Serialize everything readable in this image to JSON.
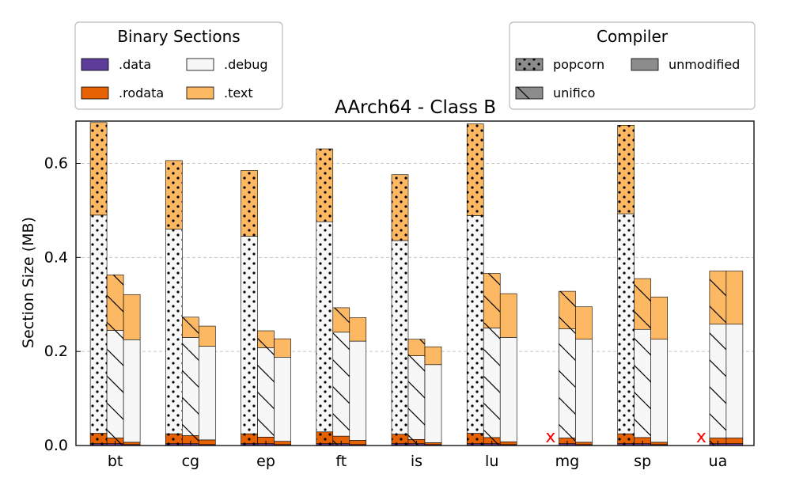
{
  "chart_data": {
    "type": "bar",
    "title": "AArch64 - Class B",
    "ylabel": "Section Size (MB)",
    "xlabel": "",
    "ylim": [
      0,
      0.69
    ],
    "yticks": [
      "0.0",
      "0.2",
      "0.4",
      "0.6"
    ],
    "ytick_values": [
      0,
      0.2,
      0.4,
      0.6
    ],
    "grid": "horizontal-dashed",
    "stacked": true,
    "categories": [
      "bt",
      "cg",
      "ep",
      "ft",
      "is",
      "lu",
      "mg",
      "sp",
      "ua"
    ],
    "sections": [
      "data",
      "rodata",
      "debug",
      "text"
    ],
    "section_colors": {
      "data": "#5e3c99",
      "rodata": "#e66101",
      "debug": "#f7f7f7",
      "text": "#fdb863"
    },
    "compilers": [
      "popcorn",
      "unifico",
      "unmodified"
    ],
    "compiler_hatch": {
      "popcorn": "dots",
      "unifico": "diagonal-lines",
      "unmodified": "none"
    },
    "missing_marker": "x",
    "missing_color": "#ff0000",
    "bars": [
      {
        "category": "bt",
        "compiler": "popcorn",
        "data": 0.004,
        "rodata": 0.022,
        "debug": 0.464,
        "text": 0.197
      },
      {
        "category": "bt",
        "compiler": "unifico",
        "data": 0.004,
        "rodata": 0.012,
        "debug": 0.229,
        "text": 0.118
      },
      {
        "category": "bt",
        "compiler": "unmodified",
        "data": 0.002,
        "rodata": 0.005,
        "debug": 0.218,
        "text": 0.096
      },
      {
        "category": "cg",
        "compiler": "popcorn",
        "data": 0.004,
        "rodata": 0.021,
        "debug": 0.435,
        "text": 0.146
      },
      {
        "category": "cg",
        "compiler": "unifico",
        "data": 0.004,
        "rodata": 0.017,
        "debug": 0.209,
        "text": 0.043
      },
      {
        "category": "cg",
        "compiler": "unmodified",
        "data": 0.002,
        "rodata": 0.01,
        "debug": 0.199,
        "text": 0.043
      },
      {
        "category": "ep",
        "compiler": "popcorn",
        "data": 0.004,
        "rodata": 0.021,
        "debug": 0.42,
        "text": 0.14
      },
      {
        "category": "ep",
        "compiler": "unifico",
        "data": 0.004,
        "rodata": 0.014,
        "debug": 0.19,
        "text": 0.036
      },
      {
        "category": "ep",
        "compiler": "unmodified",
        "data": 0.002,
        "rodata": 0.007,
        "debug": 0.179,
        "text": 0.039
      },
      {
        "category": "ft",
        "compiler": "popcorn",
        "data": 0.004,
        "rodata": 0.025,
        "debug": 0.447,
        "text": 0.155
      },
      {
        "category": "ft",
        "compiler": "unifico",
        "data": 0.004,
        "rodata": 0.016,
        "debug": 0.221,
        "text": 0.052
      },
      {
        "category": "ft",
        "compiler": "unmodified",
        "data": 0.002,
        "rodata": 0.009,
        "debug": 0.211,
        "text": 0.05
      },
      {
        "category": "is",
        "compiler": "popcorn",
        "data": 0.004,
        "rodata": 0.02,
        "debug": 0.412,
        "text": 0.14
      },
      {
        "category": "is",
        "compiler": "unifico",
        "data": 0.004,
        "rodata": 0.009,
        "debug": 0.178,
        "text": 0.035
      },
      {
        "category": "is",
        "compiler": "unmodified",
        "data": 0.002,
        "rodata": 0.004,
        "debug": 0.166,
        "text": 0.038
      },
      {
        "category": "lu",
        "compiler": "popcorn",
        "data": 0.004,
        "rodata": 0.022,
        "debug": 0.463,
        "text": 0.195
      },
      {
        "category": "lu",
        "compiler": "unifico",
        "data": 0.004,
        "rodata": 0.013,
        "debug": 0.233,
        "text": 0.116
      },
      {
        "category": "lu",
        "compiler": "unmodified",
        "data": 0.002,
        "rodata": 0.006,
        "debug": 0.222,
        "text": 0.093
      },
      {
        "category": "mg",
        "compiler": "unifico",
        "data": 0.004,
        "rodata": 0.012,
        "debug": 0.232,
        "text": 0.08
      },
      {
        "category": "mg",
        "compiler": "unmodified",
        "data": 0.002,
        "rodata": 0.005,
        "debug": 0.219,
        "text": 0.069
      },
      {
        "category": "sp",
        "compiler": "popcorn",
        "data": 0.004,
        "rodata": 0.021,
        "debug": 0.468,
        "text": 0.188
      },
      {
        "category": "sp",
        "compiler": "unifico",
        "data": 0.004,
        "rodata": 0.013,
        "debug": 0.23,
        "text": 0.108
      },
      {
        "category": "sp",
        "compiler": "unmodified",
        "data": 0.002,
        "rodata": 0.005,
        "debug": 0.219,
        "text": 0.09
      },
      {
        "category": "ua",
        "compiler": "unifico",
        "data": 0.004,
        "rodata": 0.012,
        "debug": 0.242,
        "text": 0.113
      },
      {
        "category": "ua",
        "compiler": "unmodified",
        "data": 0.004,
        "rodata": 0.012,
        "debug": 0.242,
        "text": 0.113
      }
    ],
    "missing": [
      {
        "category": "mg",
        "compiler": "popcorn",
        "label": "x"
      },
      {
        "category": "ua",
        "compiler": "popcorn",
        "label": "x"
      }
    ],
    "legends": [
      {
        "title": "Binary Sections",
        "placement": "top-left",
        "entries": [
          {
            "label": ".data",
            "section": "data"
          },
          {
            "label": ".debug",
            "section": "debug"
          },
          {
            "label": ".rodata",
            "section": "rodata"
          },
          {
            "label": ".text",
            "section": "text"
          }
        ]
      },
      {
        "title": "Compiler",
        "placement": "top-right",
        "entries": [
          {
            "label": "popcorn",
            "compiler": "popcorn"
          },
          {
            "label": "unmodified",
            "compiler": "unmodified"
          },
          {
            "label": "unifico",
            "compiler": "unifico"
          }
        ]
      }
    ]
  }
}
